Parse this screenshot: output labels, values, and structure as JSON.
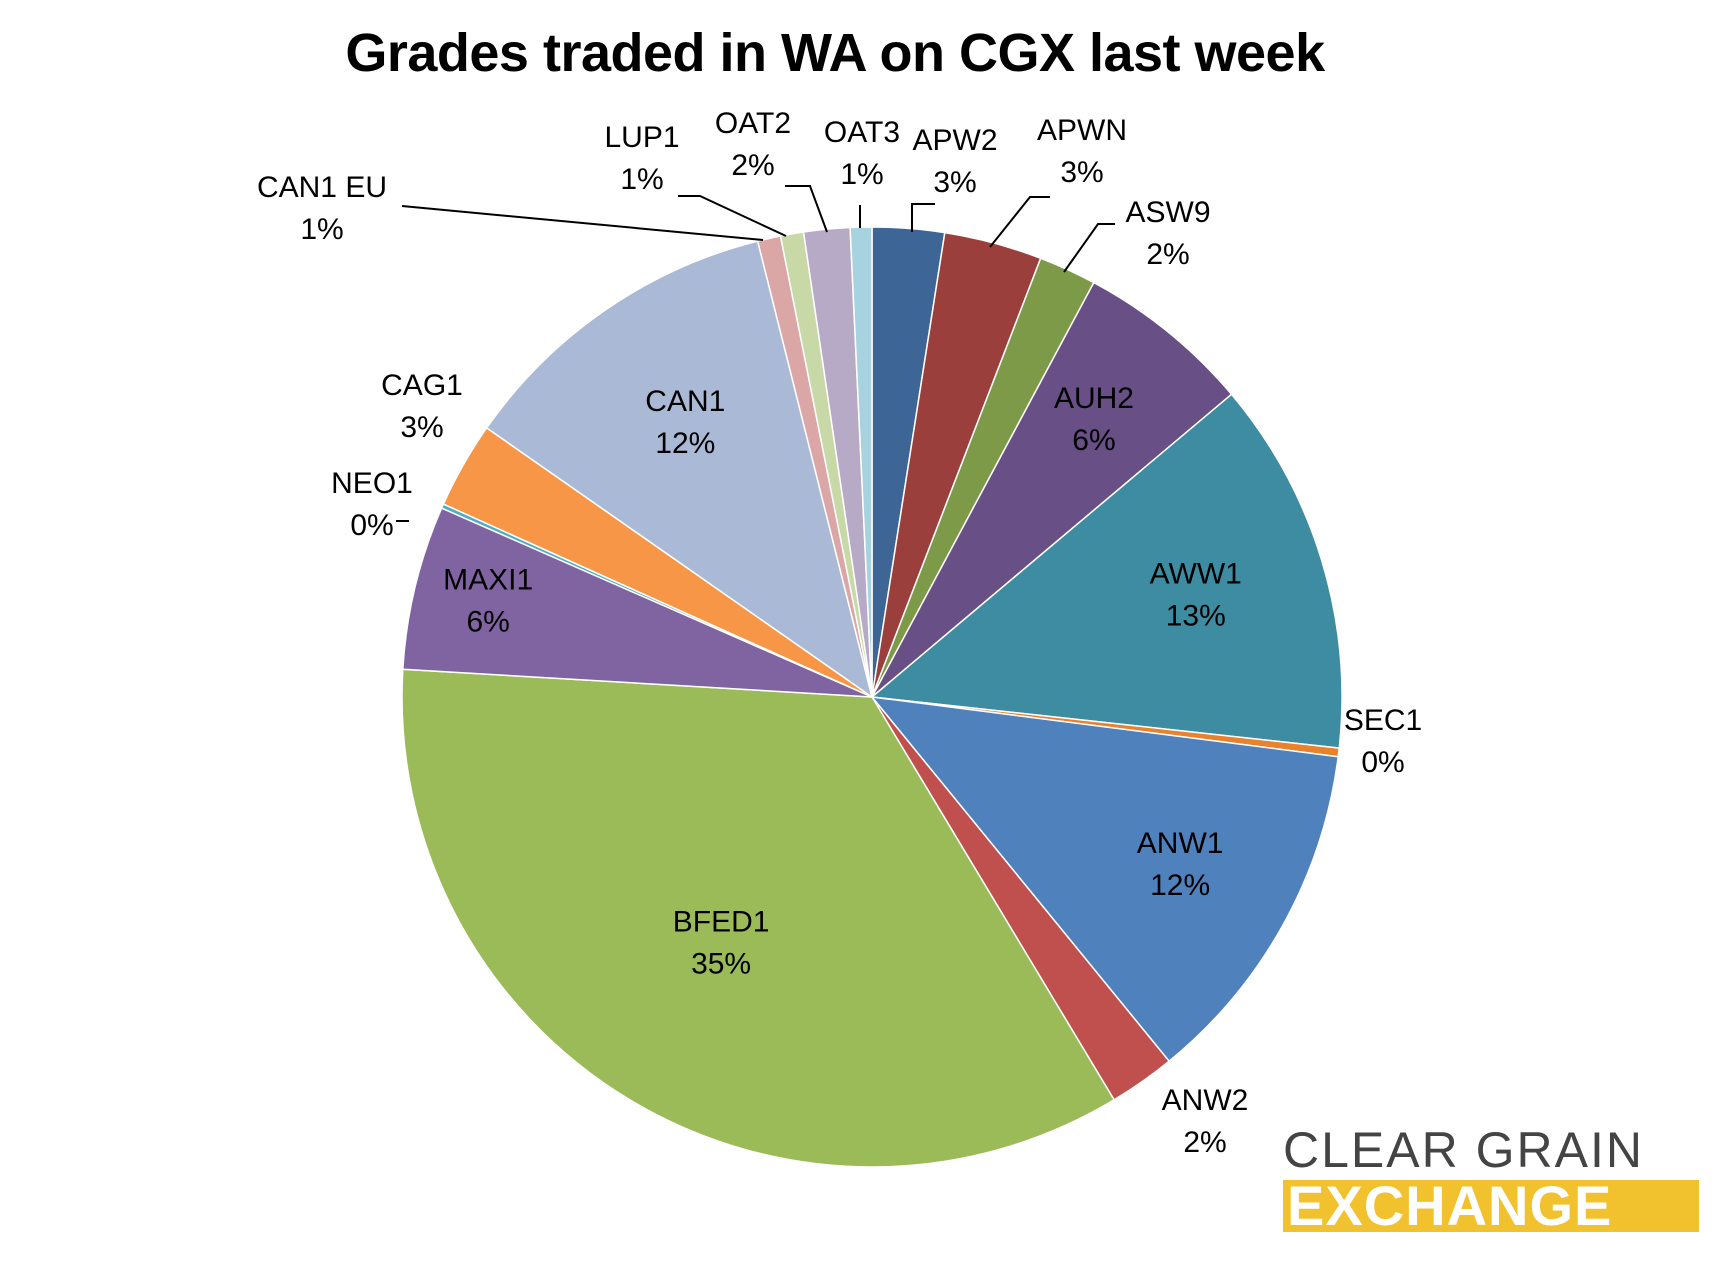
{
  "chart_data": {
    "type": "pie",
    "title": "Grades traded in WA on CGX last week",
    "slices": [
      {
        "name": "APW2",
        "value": 2.5,
        "label": "3%",
        "color": "#3d6696"
      },
      {
        "name": "APWN",
        "value": 3.4,
        "label": "3%",
        "color": "#9b3f3c"
      },
      {
        "name": "ASW9",
        "value": 2.0,
        "label": "2%",
        "color": "#7d9a48"
      },
      {
        "name": "AUH2",
        "value": 6.1,
        "label": "6%",
        "color": "#684f86"
      },
      {
        "name": "AWW1",
        "value": 13.0,
        "label": "13%",
        "color": "#3d8ca2"
      },
      {
        "name": "SEC1",
        "value": 0.3,
        "label": "0%",
        "color": "#e9822d"
      },
      {
        "name": "ANW1",
        "value": 12.2,
        "label": "12%",
        "color": "#4f81bd"
      },
      {
        "name": "ANW2",
        "value": 2.3,
        "label": "2%",
        "color": "#c0504d"
      },
      {
        "name": "BFED1",
        "value": 34.9,
        "label": "35%",
        "color": "#9bbb59"
      },
      {
        "name": "MAXI1",
        "value": 5.7,
        "label": "6%",
        "color": "#8064a2"
      },
      {
        "name": "NEO1",
        "value": 0.15,
        "label": "0%",
        "color": "#4bacc6"
      },
      {
        "name": "CAG1",
        "value": 3.0,
        "label": "3%",
        "color": "#f79646"
      },
      {
        "name": "CAN1",
        "value": 11.5,
        "label": "12%",
        "color": "#aab9d6"
      },
      {
        "name": "CAN1 EU",
        "value": 0.8,
        "label": "1%",
        "color": "#dba6a6"
      },
      {
        "name": "LUP1",
        "value": 0.8,
        "label": "1%",
        "color": "#c8d8a6"
      },
      {
        "name": "OAT2",
        "value": 1.6,
        "label": "2%",
        "color": "#b7aac6"
      },
      {
        "name": "OAT3",
        "value": 0.75,
        "label": "1%",
        "color": "#a7d2df"
      }
    ]
  },
  "logo": {
    "line1": "CLEAR GRAIN",
    "line2": "EXCHANGE",
    "text_color": "#444444",
    "band_color": "#f2c12e"
  }
}
